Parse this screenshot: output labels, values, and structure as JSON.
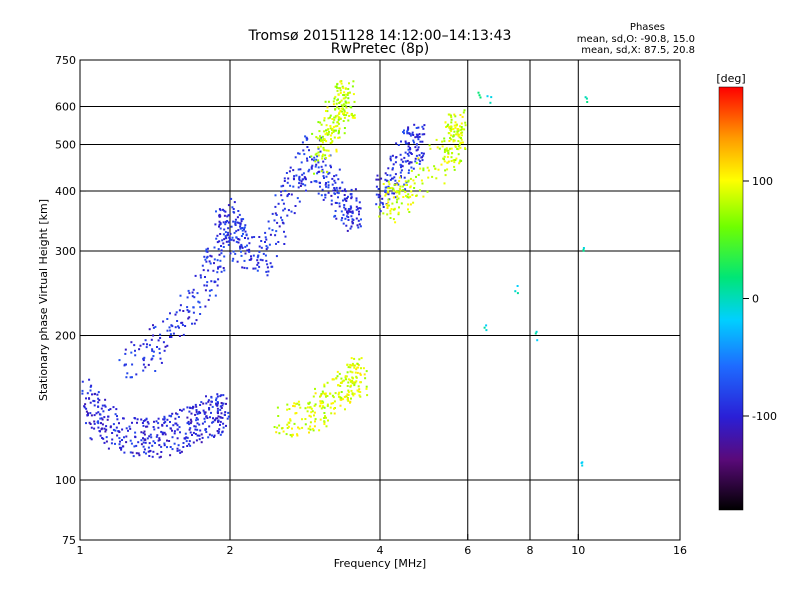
{
  "chart_data": {
    "type": "scatter",
    "title": "Tromsø 20151128 14:12:00–14:13:43",
    "subtitle": "RwPretec (8p)",
    "xlabel": "Frequency [MHz]",
    "ylabel": "Stationary phase Virtual Height [km]",
    "x_scale": "log",
    "y_scale": "log",
    "xlim": [
      1,
      16
    ],
    "ylim": [
      75,
      750
    ],
    "x_ticks": [
      1,
      2,
      4,
      6,
      8,
      10,
      16
    ],
    "x_gridlines": [
      2,
      4,
      6,
      8,
      10
    ],
    "x_tick_labels": [
      "1",
      "2",
      "4",
      "6",
      "8",
      "10",
      "16"
    ],
    "y_ticks": [
      75,
      100,
      200,
      300,
      400,
      500,
      600,
      750
    ],
    "y_gridlines": [
      100,
      200,
      300,
      400,
      500,
      600
    ],
    "y_tick_labels": [
      "75",
      "100",
      "200",
      "300",
      "400",
      "500",
      "600",
      "750"
    ],
    "grid": true,
    "stats": {
      "heading": "Phases",
      "line1": "mean, sd,O: -90.8, 15.0",
      "line2": "mean, sd,X:  87.5, 20.8"
    },
    "colorbar": {
      "label": "[deg]",
      "range": [
        -180,
        180
      ],
      "ticks": [
        100,
        0,
        -100
      ],
      "tick_labels": [
        "100",
        "0",
        "-100"
      ],
      "colormap": "rainbow (black-purple-blue-cyan-green-yellow-orange-red)"
    },
    "traces": [
      {
        "name": "",
        "kind": "O-trace E/F1 low",
        "points": [
          [
            1.0,
            152
          ],
          [
            1.05,
            140
          ],
          [
            1.1,
            132
          ],
          [
            1.2,
            125
          ],
          [
            1.3,
            123
          ],
          [
            1.4,
            122
          ],
          [
            1.5,
            124
          ],
          [
            1.6,
            128
          ],
          [
            1.7,
            132
          ],
          [
            1.8,
            135
          ],
          [
            1.9,
            138
          ]
        ],
        "phase": -95
      },
      {
        "name": "",
        "kind": "O-trace F layer",
        "points": [
          [
            1.2,
            170
          ],
          [
            1.4,
            190
          ],
          [
            1.6,
            220
          ],
          [
            1.8,
            260
          ],
          [
            1.9,
            300
          ],
          [
            1.95,
            360
          ],
          [
            2.05,
            330
          ],
          [
            2.1,
            310
          ],
          [
            2.3,
            290
          ],
          [
            2.5,
            350
          ],
          [
            2.7,
            420
          ],
          [
            2.9,
            480
          ],
          [
            3.1,
            430
          ],
          [
            3.3,
            390
          ],
          [
            3.5,
            360
          ]
        ],
        "phase": -90
      },
      {
        "name": "",
        "kind": "X-trace",
        "points": [
          [
            2.5,
            132
          ],
          [
            2.8,
            135
          ],
          [
            3.0,
            140
          ],
          [
            3.2,
            150
          ],
          [
            3.4,
            158
          ],
          [
            3.6,
            165
          ]
        ],
        "phase": 90
      },
      {
        "name": "",
        "kind": "X-trace F2",
        "points": [
          [
            3.0,
            470
          ],
          [
            3.1,
            520
          ],
          [
            3.2,
            560
          ],
          [
            3.3,
            600
          ],
          [
            3.4,
            620
          ]
        ],
        "phase": 85
      },
      {
        "name": "",
        "kind": "O-trace high",
        "points": [
          [
            4.0,
            400
          ],
          [
            4.2,
            420
          ],
          [
            4.5,
            470
          ],
          [
            4.7,
            510
          ]
        ],
        "phase": -90
      },
      {
        "name": "",
        "kind": "X-trace high",
        "points": [
          [
            4.1,
            380
          ],
          [
            4.3,
            390
          ],
          [
            4.6,
            410
          ],
          [
            5.5,
            480
          ],
          [
            5.6,
            510
          ],
          [
            5.7,
            540
          ]
        ],
        "phase": 88
      },
      {
        "name": "",
        "kind": "scattered",
        "points": [
          [
            6.3,
            640
          ],
          [
            6.6,
            620
          ],
          [
            10.3,
            620
          ],
          [
            10.2,
            300
          ],
          [
            10.2,
            110
          ],
          [
            6.5,
            210
          ],
          [
            8.2,
            200
          ],
          [
            7.5,
            250
          ]
        ],
        "phase": 0
      }
    ]
  }
}
